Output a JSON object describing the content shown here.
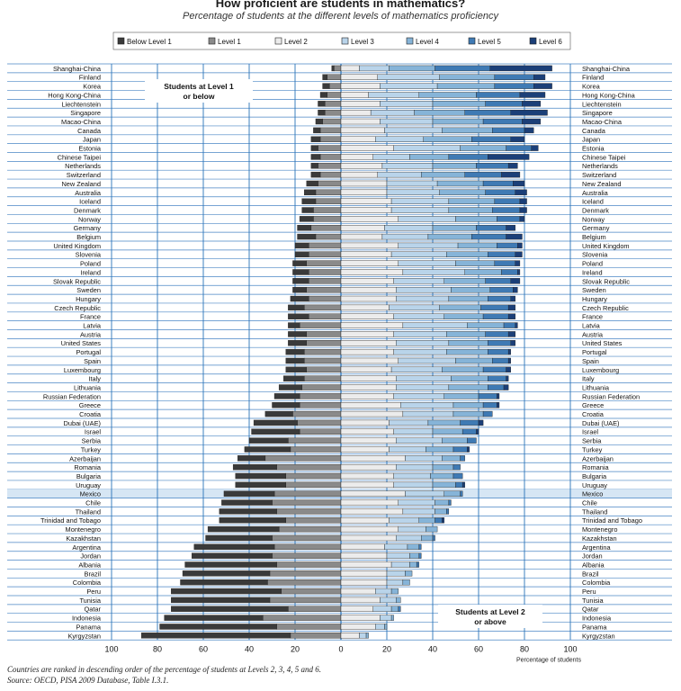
{
  "title": "How proficient are students in mathematics?",
  "subtitle": "Percentage of students at the different levels of mathematics proficiency",
  "footnotes": [
    "Countries are ranked in descending order of the percentage of students at Levels 2, 3, 4, 5 and 6.",
    "Source: OECD, PISA 2009 Database, Table I.3.1."
  ],
  "colors": {
    "below_level_1": "#3a3a3a",
    "level_1": "#8a8a8a",
    "level_2": "#ececec",
    "level_3": "#b9d4ea",
    "level_4": "#86b4d8",
    "level_5": "#3f7ab4",
    "level_6": "#1b3f78",
    "guide_line": "#2a73b8",
    "highlight_row": "#d6e6f4"
  },
  "chart_data": {
    "type": "bar",
    "orientation": "horizontal-diverging",
    "title": "How proficient are students in mathematics?",
    "subtitle": "Percentage of students at the different levels of mathematics proficiency",
    "xlabel": "Percentage of students",
    "xlim": [
      -100,
      100
    ],
    "xticks": [
      -100,
      -80,
      -60,
      -40,
      -20,
      0,
      20,
      40,
      60,
      80,
      100
    ],
    "xtick_labels": [
      "100",
      "80",
      "60",
      "40",
      "20",
      "0",
      "20",
      "40",
      "60",
      "80",
      "100"
    ],
    "annotations": [
      "Students at Level 1 or below",
      "Students at Level 2 or above"
    ],
    "highlighted_category": "Mexico",
    "legend": {
      "placement": "top",
      "entries": [
        "Below Level 1",
        "Level 1",
        "Level 2",
        "Level 3",
        "Level 4",
        "Level 5",
        "Level 6"
      ]
    },
    "categories": [
      "Shanghai-China",
      "Finland",
      "Korea",
      "Hong Kong-China",
      "Liechtenstein",
      "Singapore",
      "Macao-China",
      "Canada",
      "Japan",
      "Estonia",
      "Chinese Taipei",
      "Netherlands",
      "Switzerland",
      "New Zealand",
      "Australia",
      "Iceland",
      "Denmark",
      "Norway",
      "Germany",
      "Belgium",
      "United Kingdom",
      "Slovenia",
      "Poland",
      "Ireland",
      "Slovak Republic",
      "Sweden",
      "Hungary",
      "Czech Republic",
      "France",
      "Latvia",
      "Austria",
      "United States",
      "Portugal",
      "Spain",
      "Luxembourg",
      "Italy",
      "Lithuania",
      "Russian Federation",
      "Greece",
      "Croatia",
      "Dubai (UAE)",
      "Israel",
      "Serbia",
      "Turkey",
      "Azerbaijan",
      "Romania",
      "Bulgaria",
      "Uruguay",
      "Mexico",
      "Chile",
      "Thailand",
      "Trinidad and Tobago",
      "Montenegro",
      "Kazakhstan",
      "Argentina",
      "Jordan",
      "Albania",
      "Brazil",
      "Colombia",
      "Peru",
      "Tunisia",
      "Qatar",
      "Indonesia",
      "Panama",
      "Kyrgyzstan"
    ],
    "series": [
      {
        "name": "Below Level 1",
        "values": [
          1,
          2,
          3,
          3,
          3,
          3,
          3,
          3,
          4,
          3,
          4,
          3,
          4,
          5,
          5,
          6,
          5,
          6,
          6,
          8,
          6,
          6,
          6,
          7,
          7,
          6,
          8,
          7,
          9,
          5,
          8,
          8,
          8,
          8,
          9,
          9,
          10,
          11,
          12,
          12,
          19,
          21,
          17,
          20,
          12,
          19,
          22,
          22,
          22,
          22,
          25,
          29,
          31,
          29,
          35,
          35,
          40,
          38,
          38,
          48,
          43,
          51,
          43,
          51,
          65
        ]
      },
      {
        "name": "Level 1",
        "values": [
          3,
          6,
          5,
          6,
          7,
          7,
          8,
          9,
          9,
          10,
          9,
          10,
          9,
          10,
          11,
          11,
          12,
          12,
          13,
          11,
          14,
          14,
          15,
          14,
          14,
          15,
          14,
          16,
          14,
          18,
          15,
          15,
          16,
          16,
          15,
          16,
          17,
          18,
          18,
          21,
          19,
          18,
          23,
          22,
          33,
          28,
          24,
          24,
          29,
          30,
          28,
          24,
          27,
          30,
          29,
          30,
          28,
          31,
          32,
          26,
          31,
          23,
          34,
          28,
          22
        ]
      },
      {
        "name": "Level 2",
        "values": [
          8,
          16,
          17,
          12,
          17,
          13,
          17,
          19,
          15,
          23,
          14,
          18,
          16,
          20,
          20,
          22,
          22,
          25,
          19,
          18,
          25,
          22,
          25,
          27,
          23,
          24,
          24,
          21,
          23,
          27,
          23,
          24,
          23,
          25,
          22,
          24,
          24,
          23,
          26,
          27,
          21,
          23,
          24,
          21,
          28,
          24,
          23,
          23,
          28,
          25,
          27,
          21,
          25,
          24,
          19,
          20,
          22,
          20,
          20,
          15,
          17,
          14,
          17,
          15,
          8
        ]
      },
      {
        "name": "Level 3",
        "values": [
          13,
          27,
          25,
          22,
          23,
          19,
          23,
          25,
          21,
          29,
          16,
          22,
          19,
          22,
          23,
          25,
          25,
          25,
          21,
          20,
          26,
          24,
          25,
          27,
          22,
          24,
          23,
          22,
          22,
          28,
          23,
          23,
          23,
          25,
          22,
          24,
          23,
          22,
          23,
          22,
          17,
          17,
          20,
          16,
          16,
          16,
          16,
          17,
          17,
          16,
          14,
          13,
          12,
          11,
          10,
          10,
          8,
          8,
          7,
          7,
          7,
          8,
          5,
          4,
          3
        ]
      },
      {
        "name": "Level 4",
        "values": [
          20,
          24,
          25,
          25,
          23,
          22,
          22,
          22,
          21,
          20,
          17,
          19,
          19,
          20,
          20,
          20,
          19,
          18,
          19,
          19,
          17,
          18,
          17,
          16,
          18,
          17,
          17,
          18,
          17,
          16,
          17,
          17,
          18,
          16,
          18,
          16,
          17,
          15,
          13,
          13,
          14,
          13,
          11,
          12,
          8,
          9,
          10,
          10,
          7,
          6,
          5,
          7,
          5,
          5,
          5,
          4,
          3,
          3,
          3,
          3,
          2,
          3,
          1,
          1,
          1
        ]
      },
      {
        "name": "Level 5",
        "values": [
          24,
          17,
          17,
          19,
          16,
          20,
          17,
          14,
          17,
          11,
          17,
          14,
          16,
          13,
          13,
          11,
          12,
          10,
          13,
          15,
          9,
          12,
          9,
          7,
          11,
          10,
          10,
          12,
          11,
          5,
          10,
          10,
          9,
          7,
          10,
          8,
          7,
          8,
          6,
          4,
          8,
          6,
          4,
          6,
          2,
          3,
          4,
          3,
          1,
          1,
          1,
          3,
          0,
          1,
          1,
          1,
          1,
          0,
          0,
          0,
          0,
          1,
          0,
          0,
          0
        ]
      },
      {
        "name": "Level 6",
        "values": [
          27,
          5,
          8,
          11,
          8,
          16,
          8,
          4,
          6,
          3,
          18,
          4,
          8,
          5,
          5,
          3,
          3,
          2,
          4,
          7,
          2,
          3,
          2,
          1,
          4,
          2,
          2,
          3,
          3,
          1,
          3,
          2,
          1,
          1,
          2,
          1,
          2,
          1,
          1,
          0,
          2,
          1,
          0,
          1,
          0,
          0,
          0,
          1,
          0,
          0,
          0,
          1,
          0,
          0,
          0,
          0,
          0,
          0,
          0,
          0,
          0,
          0,
          0,
          0,
          0
        ]
      }
    ]
  }
}
